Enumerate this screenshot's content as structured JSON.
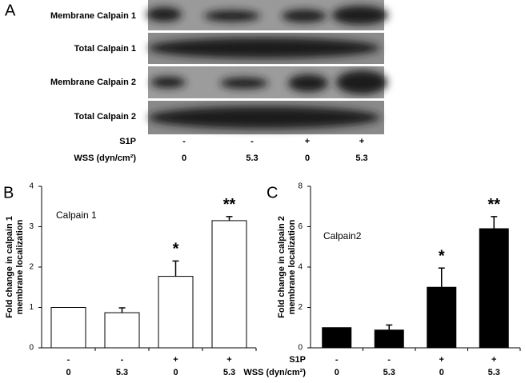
{
  "panel_a": {
    "letter": "A",
    "rows": [
      "Membrane Calpain 1",
      "Total Calpain 1",
      "Membrane Calpain 2",
      "Total Calpain 2"
    ],
    "s1p_label": "S1P",
    "s1p": [
      "-",
      "-",
      "+",
      "+"
    ],
    "wss_label": "WSS (dyn/cm²)",
    "wss": [
      "0",
      "5.3",
      "0",
      "5.3"
    ]
  },
  "chart_data": [
    {
      "type": "bar",
      "panel": "B",
      "label": "Calpain 1",
      "ylabel": [
        "Fold change in calpain 1",
        "membrane localization"
      ],
      "s1p": [
        "-",
        "-",
        "+",
        "+"
      ],
      "categories": [
        "0",
        "5.3",
        "0",
        "5.3"
      ],
      "values": [
        1,
        0.87,
        1.77,
        3.15
      ],
      "errors": [
        0,
        0.12,
        0.38,
        0.1
      ],
      "annotations": [
        null,
        null,
        "*",
        "**"
      ],
      "color": "#ffffff",
      "ylim": [
        0,
        4
      ],
      "yticks": [
        0,
        1,
        2,
        3,
        4
      ]
    },
    {
      "type": "bar",
      "panel": "C",
      "label": "Calpain2",
      "ylabel": [
        "Fold change in calpain 2",
        "membrane localization"
      ],
      "s1p_label": "S1P",
      "wss_label": "WSS (dyn/cm²)",
      "s1p": [
        "-",
        "-",
        "+",
        "+"
      ],
      "categories": [
        "0",
        "5.3",
        "0",
        "5.3"
      ],
      "values": [
        1,
        0.88,
        3.0,
        5.9
      ],
      "errors": [
        0,
        0.25,
        0.95,
        0.6
      ],
      "annotations": [
        null,
        null,
        "*",
        "**"
      ],
      "color": "#000000",
      "ylim": [
        0,
        8
      ],
      "yticks": [
        0,
        2,
        4,
        6,
        8
      ]
    }
  ]
}
